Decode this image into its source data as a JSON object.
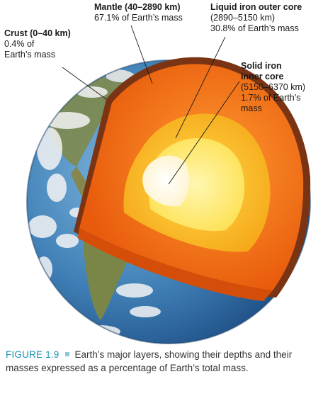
{
  "labels": {
    "crust": {
      "name": "Crust (0–40 km)",
      "line1": "0.4% of",
      "line2": "Earth’s mass"
    },
    "mantle": {
      "name": "Mantle (40–2890 km)",
      "line1": "67.1% of Earth’s mass"
    },
    "outer_core": {
      "name": "Liquid iron outer core",
      "line1": "(2890–5150 km)",
      "line2": "30.8% of Earth’s mass"
    },
    "inner_core": {
      "name1": "Solid iron",
      "name2": "inner core",
      "line1": "(5150–6370 km)",
      "line2": "1.7% of Earth’s",
      "line3": "mass"
    }
  },
  "caption": {
    "figure_number": "FIGURE 1.9",
    "text": "Earth’s major layers, showing their depths and their masses expressed as a percentage of Earth’s total mass."
  },
  "colors": {
    "ocean": "#3f7fb5",
    "land": "#8a8a52",
    "cloud": "#f2f2f2",
    "crust": "#6b2e12",
    "mantle": "#f06a14",
    "outer_core": "#f6b418",
    "inner_core": "#fde86a",
    "core_center": "#ffffff",
    "caption_accent": "#1b91b3"
  }
}
